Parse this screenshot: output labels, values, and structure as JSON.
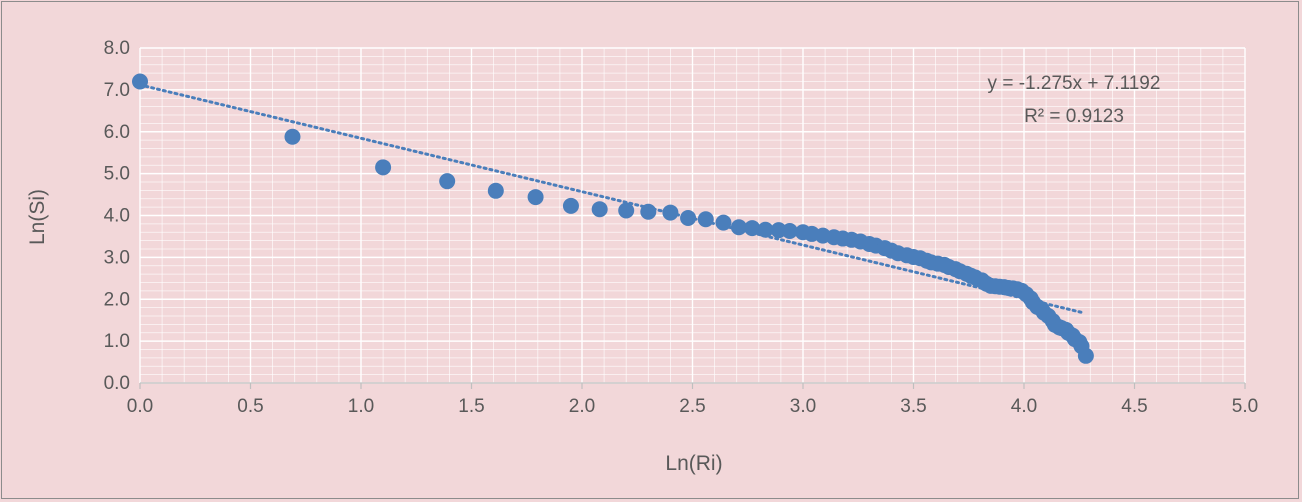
{
  "chart_data": {
    "type": "scatter",
    "title": "",
    "xlabel": "Ln(Ri)",
    "ylabel": "Ln(Si)",
    "xlim": [
      0,
      5
    ],
    "ylim": [
      0,
      8
    ],
    "x_ticks": [
      "0.0",
      "0.5",
      "1.0",
      "1.5",
      "2.0",
      "2.5",
      "3.0",
      "3.5",
      "4.0",
      "4.5",
      "5.0"
    ],
    "y_ticks": [
      "0.0",
      "1.0",
      "2.0",
      "3.0",
      "4.0",
      "5.0",
      "6.0",
      "7.0",
      "8.0"
    ],
    "grid": true,
    "legend": "none",
    "colors": {
      "points": "#4a7ebb",
      "trendline": "#4a7ebb",
      "grid": "#ffffff",
      "background": "#f2d7d9"
    },
    "trendline": {
      "type": "linear",
      "slope": -1.275,
      "intercept": 7.1192,
      "x_range": [
        0,
        4.27
      ],
      "style": "dotted"
    },
    "annotations": {
      "equation": "y = -1.275x + 7.1192",
      "r_squared": "R² = 0.9123"
    },
    "series": [
      {
        "points": [
          [
            0.0,
            7.2
          ],
          [
            0.69,
            5.88
          ],
          [
            1.1,
            5.15
          ],
          [
            1.39,
            4.82
          ],
          [
            1.61,
            4.59
          ],
          [
            1.79,
            4.44
          ],
          [
            1.95,
            4.23
          ],
          [
            2.08,
            4.15
          ],
          [
            2.2,
            4.12
          ],
          [
            2.3,
            4.09
          ],
          [
            2.4,
            4.07
          ],
          [
            2.48,
            3.94
          ],
          [
            2.56,
            3.91
          ],
          [
            2.64,
            3.83
          ],
          [
            2.71,
            3.72
          ],
          [
            2.77,
            3.7
          ],
          [
            2.83,
            3.66
          ],
          [
            2.89,
            3.65
          ],
          [
            2.94,
            3.63
          ],
          [
            3.0,
            3.6
          ],
          [
            3.04,
            3.56
          ],
          [
            3.09,
            3.52
          ],
          [
            3.14,
            3.48
          ],
          [
            3.18,
            3.45
          ],
          [
            3.22,
            3.42
          ],
          [
            3.26,
            3.38
          ],
          [
            3.3,
            3.32
          ],
          [
            3.33,
            3.28
          ],
          [
            3.37,
            3.22
          ],
          [
            3.4,
            3.16
          ],
          [
            3.43,
            3.1
          ],
          [
            3.47,
            3.05
          ],
          [
            3.5,
            3.01
          ],
          [
            3.53,
            2.98
          ],
          [
            3.56,
            2.92
          ],
          [
            3.58,
            2.88
          ],
          [
            3.61,
            2.85
          ],
          [
            3.64,
            2.82
          ],
          [
            3.66,
            2.77
          ],
          [
            3.69,
            2.72
          ],
          [
            3.71,
            2.67
          ],
          [
            3.74,
            2.61
          ],
          [
            3.76,
            2.56
          ],
          [
            3.78,
            2.52
          ],
          [
            3.81,
            2.45
          ],
          [
            3.83,
            2.37
          ],
          [
            3.85,
            2.32
          ],
          [
            3.87,
            2.31
          ],
          [
            3.89,
            2.3
          ],
          [
            3.91,
            2.29
          ],
          [
            3.93,
            2.27
          ],
          [
            3.95,
            2.26
          ],
          [
            3.97,
            2.24
          ],
          [
            3.99,
            2.2
          ],
          [
            4.01,
            2.12
          ],
          [
            4.03,
            2.02
          ],
          [
            4.04,
            1.93
          ],
          [
            4.06,
            1.82
          ],
          [
            4.08,
            1.76
          ],
          [
            4.09,
            1.68
          ],
          [
            4.11,
            1.6
          ],
          [
            4.13,
            1.48
          ],
          [
            4.14,
            1.39
          ],
          [
            4.16,
            1.33
          ],
          [
            4.17,
            1.31
          ],
          [
            4.19,
            1.27
          ],
          [
            4.2,
            1.2
          ],
          [
            4.22,
            1.13
          ],
          [
            4.23,
            1.05
          ],
          [
            4.25,
            0.98
          ],
          [
            4.26,
            0.88
          ],
          [
            4.28,
            0.65
          ]
        ]
      }
    ]
  }
}
